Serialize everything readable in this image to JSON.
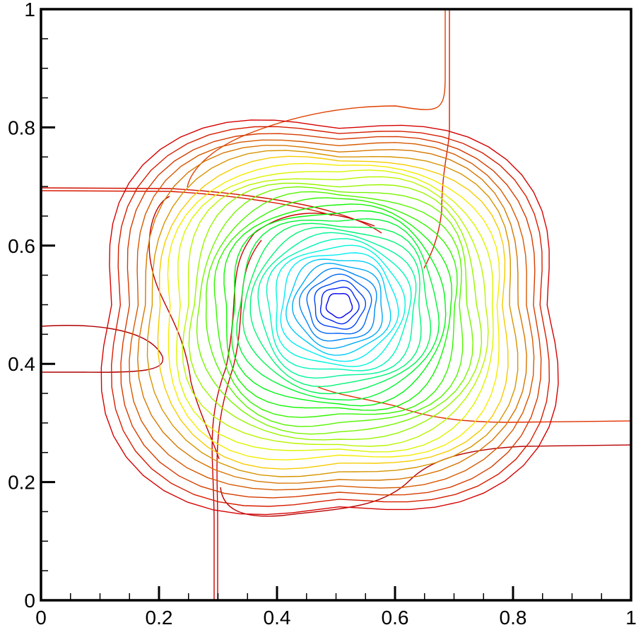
{
  "chart_data": {
    "type": "contour",
    "xlim": [
      0,
      1
    ],
    "ylim": [
      0,
      1
    ],
    "xticks": [
      0,
      0.2,
      0.4,
      0.6,
      0.8,
      1
    ],
    "yticks": [
      0,
      0.2,
      0.4,
      0.6,
      0.8,
      1
    ],
    "xminorticks": [
      0.05,
      0.1,
      0.15,
      0.25,
      0.3,
      0.35,
      0.45,
      0.5,
      0.55,
      0.65,
      0.7,
      0.75,
      0.85,
      0.9,
      0.95
    ],
    "yminorticks": [
      0.05,
      0.1,
      0.15,
      0.25,
      0.3,
      0.35,
      0.45,
      0.5,
      0.55,
      0.65,
      0.7,
      0.75,
      0.85,
      0.9,
      0.95
    ]
  }
}
